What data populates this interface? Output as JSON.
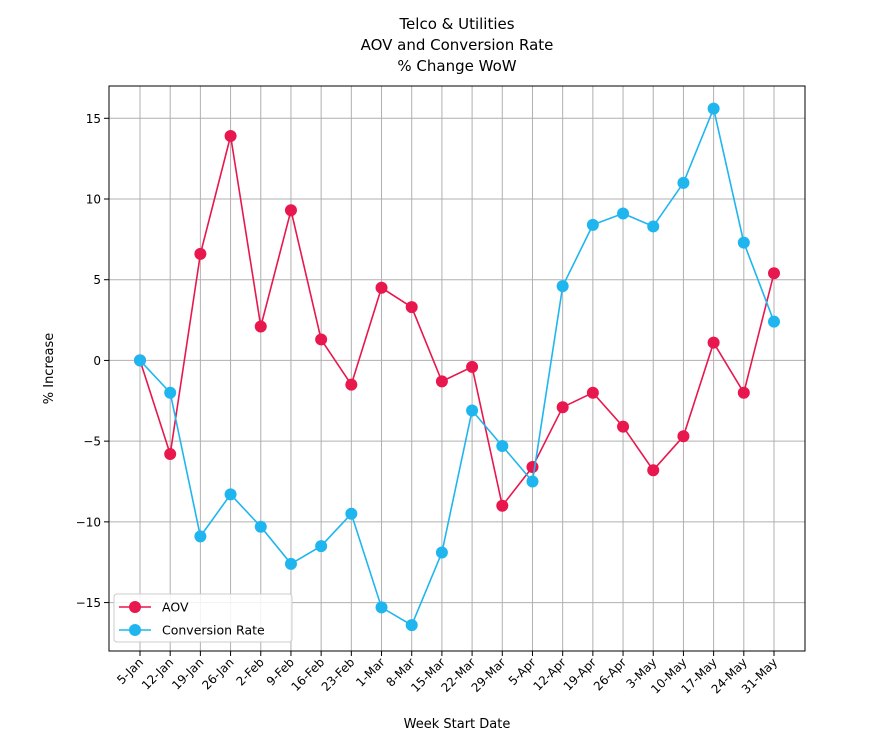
{
  "chart_data": {
    "type": "line",
    "title": [
      "Telco & Utilities",
      "AOV and Conversion Rate",
      "% Change WoW"
    ],
    "xlabel": "Week Start Date",
    "ylabel": "% Increase",
    "ylim": [
      -18,
      17
    ],
    "yticks": [
      15,
      10,
      5,
      0,
      -5,
      -10,
      -15
    ],
    "grid": true,
    "legend_position": "lower-left",
    "categories": [
      "5-Jan",
      "12-Jan",
      "19-Jan",
      "26-Jan",
      "2-Feb",
      "9-Feb",
      "16-Feb",
      "23-Feb",
      "1-Mar",
      "8-Mar",
      "15-Mar",
      "22-Mar",
      "29-Mar",
      "5-Apr",
      "12-Apr",
      "19-Apr",
      "26-Apr",
      "3-May",
      "10-May",
      "17-May",
      "24-May",
      "31-May"
    ],
    "series": [
      {
        "name": "AOV",
        "color": "#e8174d",
        "values": [
          0.0,
          -5.8,
          6.6,
          13.9,
          2.1,
          9.3,
          1.3,
          -1.5,
          4.5,
          3.3,
          -1.3,
          -0.4,
          -9.0,
          -6.6,
          -2.9,
          -2.0,
          -4.1,
          -6.8,
          -4.7,
          1.1,
          -2.0,
          5.4
        ]
      },
      {
        "name": "Conversion Rate",
        "color": "#1fb6f0",
        "values": [
          0.0,
          -2.0,
          -10.9,
          -8.3,
          -10.3,
          -12.6,
          -11.5,
          -9.5,
          -15.3,
          -16.4,
          -11.9,
          -3.1,
          -5.3,
          -7.5,
          4.6,
          8.4,
          9.1,
          8.3,
          11.0,
          15.6,
          7.3,
          2.4
        ]
      }
    ]
  }
}
